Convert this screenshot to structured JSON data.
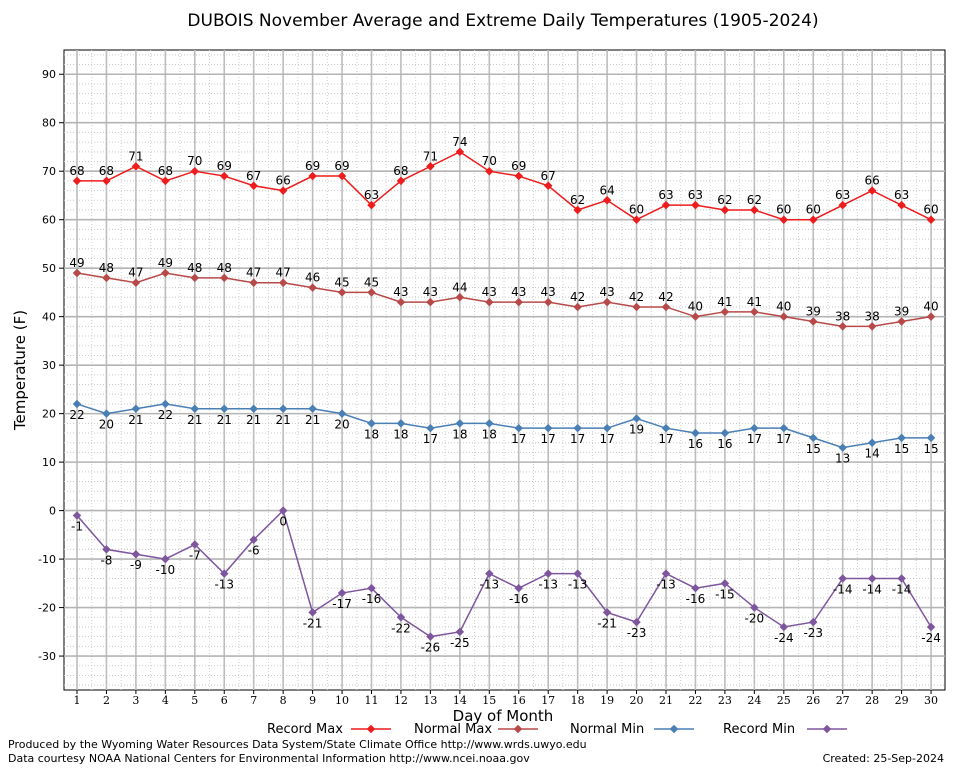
{
  "chart_data": {
    "type": "line",
    "title": "DUBOIS November Average and Extreme Daily Temperatures (1905-2024)",
    "xlabel": "Day of Month",
    "ylabel": "Temperature (F)",
    "ylim": [
      -37,
      95
    ],
    "yticks": [
      -30,
      -20,
      -10,
      0,
      10,
      20,
      30,
      40,
      50,
      60,
      70,
      80,
      90
    ],
    "grid": true,
    "legend_position": "bottom",
    "x": [
      1,
      2,
      3,
      4,
      5,
      6,
      7,
      8,
      9,
      10,
      11,
      12,
      13,
      14,
      15,
      16,
      17,
      18,
      19,
      20,
      21,
      22,
      23,
      24,
      25,
      26,
      27,
      28,
      29,
      30
    ],
    "series": [
      {
        "name": "Record Max",
        "color": "#ee1c1c",
        "label_position": "above",
        "values": [
          68,
          68,
          71,
          68,
          70,
          69,
          67,
          66,
          69,
          69,
          63,
          68,
          71,
          74,
          70,
          69,
          67,
          62,
          64,
          60,
          63,
          63,
          62,
          62,
          60,
          60,
          63,
          66,
          63,
          60
        ]
      },
      {
        "name": "Normal Max",
        "color": "#b74949",
        "label_position": "above",
        "values": [
          49,
          48,
          47,
          49,
          48,
          48,
          47,
          47,
          46,
          45,
          45,
          43,
          43,
          44,
          43,
          43,
          43,
          42,
          43,
          42,
          42,
          40,
          41,
          41,
          40,
          39,
          38,
          38,
          39,
          40
        ]
      },
      {
        "name": "Normal Min",
        "color": "#4a7fb5",
        "label_position": "below",
        "values": [
          22,
          20,
          21,
          22,
          21,
          21,
          21,
          21,
          21,
          20,
          18,
          18,
          17,
          18,
          18,
          17,
          17,
          17,
          17,
          19,
          17,
          16,
          16,
          17,
          17,
          15,
          13,
          14,
          15,
          15
        ]
      },
      {
        "name": "Record Min",
        "color": "#7e569e",
        "label_position": "below",
        "values": [
          -1,
          -8,
          -9,
          -10,
          -7,
          -13,
          -6,
          0,
          -21,
          -17,
          -16,
          -22,
          -26,
          -25,
          -13,
          -16,
          -13,
          -13,
          -21,
          -23,
          -13,
          -16,
          -15,
          -20,
          -24,
          -23,
          -14,
          -14,
          -14,
          -24
        ]
      }
    ]
  },
  "footer": {
    "credit_line1": "Produced by the Wyoming Water Resources Data System/State Climate Office http://www.wrds.uwyo.edu",
    "credit_line2": "Data courtesy NOAA National Centers for Environmental Information http://www.ncei.noaa.gov",
    "created": "Created:  25-Sep-2024"
  }
}
